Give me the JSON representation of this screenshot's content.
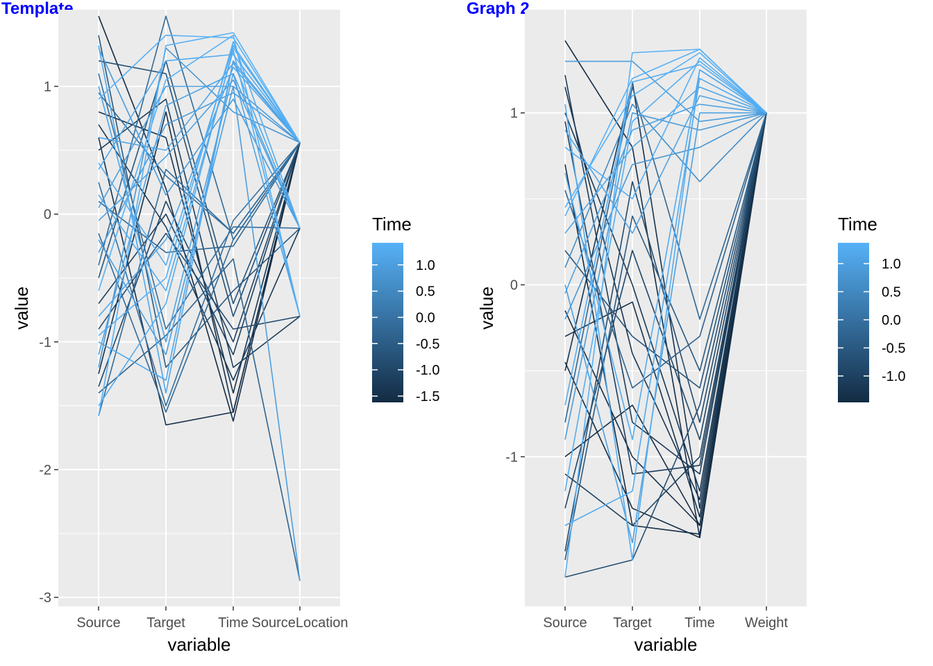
{
  "chart_data": [
    {
      "type": "line",
      "subtype": "parallel-coordinates",
      "title": "Template",
      "xlabel": "variable",
      "ylabel": "value",
      "categories": [
        "Source",
        "Target",
        "Time",
        "SourceLocation"
      ],
      "ylim": [
        -3.07,
        1.6
      ],
      "yticks": [
        -3,
        -2,
        -1,
        0,
        1
      ],
      "ytick_labels": [
        "-3",
        "-2",
        "-1",
        "0",
        "1"
      ],
      "grid": true,
      "legend": {
        "title": "Time",
        "position": "right",
        "range": [
          -1.62,
          1.42
        ],
        "ticks": [
          1.0,
          0.5,
          0.0,
          -0.5,
          -1.0,
          -1.5
        ],
        "tick_labels": [
          "1.0",
          "0.5",
          "0.0",
          "-0.5",
          "-1.0",
          "-1.5"
        ],
        "color_low": "#132b43",
        "color_high": "#56b1f7"
      },
      "series": [
        {
          "values": [
            1.55,
            0.2,
            -1.62,
            0.56
          ]
        },
        {
          "values": [
            -1.58,
            1.32,
            1.42,
            0.56
          ]
        },
        {
          "values": [
            1.32,
            -1.4,
            1.2,
            -0.11
          ]
        },
        {
          "values": [
            -0.4,
            1.55,
            -0.2,
            0.56
          ]
        },
        {
          "values": [
            0.6,
            -1.65,
            -1.55,
            0.56
          ]
        },
        {
          "values": [
            -1.1,
            0.85,
            1.1,
            -0.8
          ]
        },
        {
          "values": [
            0.95,
            0.3,
            -0.15,
            0.56
          ]
        },
        {
          "values": [
            -0.95,
            -0.5,
            1.35,
            -0.11
          ]
        },
        {
          "values": [
            0.35,
            1.2,
            1.25,
            0.56
          ]
        },
        {
          "values": [
            -1.35,
            0.1,
            -1.0,
            0.56
          ]
        },
        {
          "values": [
            1.1,
            -0.9,
            -0.1,
            -0.11
          ]
        },
        {
          "values": [
            -0.2,
            -1.1,
            1.0,
            -2.87
          ]
        },
        {
          "values": [
            0.8,
            0.6,
            -1.4,
            0.56
          ]
        },
        {
          "values": [
            -0.6,
            1.05,
            1.4,
            -0.8
          ]
        },
        {
          "values": [
            0.1,
            -0.3,
            -0.25,
            0.56
          ]
        },
        {
          "values": [
            -1.2,
            1.3,
            0.8,
            0.56
          ]
        },
        {
          "values": [
            1.4,
            -1.2,
            -0.6,
            -0.11
          ]
        },
        {
          "values": [
            -0.8,
            -0.2,
            1.15,
            0.56
          ]
        },
        {
          "values": [
            0.5,
            0.9,
            -1.2,
            -0.8
          ]
        },
        {
          "values": [
            -1.5,
            -0.7,
            1.3,
            0.56
          ]
        },
        {
          "values": [
            0.25,
            -1.5,
            -0.05,
            0.56
          ]
        },
        {
          "values": [
            -0.05,
            0.45,
            1.05,
            -0.11
          ]
        },
        {
          "values": [
            1.2,
            1.1,
            -0.8,
            0.56
          ]
        },
        {
          "values": [
            -1.0,
            -1.3,
            1.2,
            0.56
          ]
        },
        {
          "values": [
            0.7,
            -0.1,
            -1.3,
            -0.11
          ]
        },
        {
          "values": [
            -0.3,
            0.7,
            0.95,
            0.56
          ]
        },
        {
          "values": [
            -1.4,
            -0.95,
            -0.35,
            -2.87
          ]
        },
        {
          "values": [
            0.9,
            1.4,
            1.38,
            0.56
          ]
        },
        {
          "values": [
            -0.7,
            0.0,
            -1.1,
            0.56
          ]
        },
        {
          "values": [
            0.15,
            -0.6,
            1.28,
            -0.8
          ]
        },
        {
          "values": [
            -1.58,
            0.35,
            -0.15,
            0.56
          ]
        },
        {
          "values": [
            1.0,
            -1.0,
            1.1,
            -0.11
          ]
        },
        {
          "values": [
            -0.5,
            1.2,
            -0.7,
            0.56
          ]
        },
        {
          "values": [
            0.4,
            -0.4,
            1.32,
            0.56
          ]
        },
        {
          "values": [
            -1.25,
            0.8,
            -1.55,
            0.56
          ]
        },
        {
          "values": [
            1.3,
            0.15,
            0.9,
            -0.11
          ]
        },
        {
          "values": [
            -0.15,
            -1.55,
            -0.2,
            0.56
          ]
        },
        {
          "values": [
            0.6,
            0.5,
            1.18,
            0.56
          ]
        },
        {
          "values": [
            -0.9,
            -0.15,
            -0.9,
            -0.8
          ]
        },
        {
          "values": [
            0.05,
            1.0,
            1.0,
            0.56
          ]
        }
      ]
    },
    {
      "type": "line",
      "subtype": "parallel-coordinates",
      "title": "Graph 2",
      "xlabel": "variable",
      "ylabel": "value",
      "categories": [
        "Source",
        "Target",
        "Time",
        "Weight"
      ],
      "ylim": [
        -1.87,
        1.6
      ],
      "yticks": [
        -1,
        0,
        1
      ],
      "ytick_labels": [
        "-1",
        "0",
        "1"
      ],
      "grid": true,
      "legend": {
        "title": "Time",
        "position": "right",
        "range": [
          -1.47,
          1.37
        ],
        "ticks": [
          1.0,
          0.5,
          0.0,
          -0.5,
          -1.0
        ],
        "tick_labels": [
          "1.0",
          "0.5",
          "0.0",
          "-0.5",
          "-1.0"
        ],
        "color_low": "#132b43",
        "color_high": "#56b1f7"
      },
      "series": [
        {
          "values": [
            1.42,
            0.8,
            -1.47,
            1.0
          ]
        },
        {
          "values": [
            -1.7,
            1.35,
            1.37,
            1.0
          ]
        },
        {
          "values": [
            1.05,
            -1.6,
            1.25,
            1.0
          ]
        },
        {
          "values": [
            -0.5,
            1.18,
            -1.3,
            1.0
          ]
        },
        {
          "values": [
            0.7,
            -1.4,
            -1.45,
            1.0
          ]
        },
        {
          "values": [
            -1.2,
            0.95,
            1.3,
            1.0
          ]
        },
        {
          "values": [
            0.2,
            -0.3,
            -0.6,
            1.0
          ]
        },
        {
          "values": [
            -0.9,
            1.0,
            0.9,
            1.0
          ]
        },
        {
          "values": [
            1.22,
            -0.8,
            -1.1,
            1.0
          ]
        },
        {
          "values": [
            -1.4,
            -1.2,
            1.2,
            1.0
          ]
        },
        {
          "values": [
            0.45,
            1.1,
            1.35,
            1.0
          ]
        },
        {
          "values": [
            -0.15,
            -1.0,
            -1.4,
            1.0
          ]
        },
        {
          "values": [
            0.9,
            0.3,
            1.1,
            1.0
          ]
        },
        {
          "values": [
            -1.55,
            0.6,
            -0.8,
            1.0
          ]
        },
        {
          "values": [
            0.0,
            -1.5,
            1.0,
            1.0
          ]
        },
        {
          "values": [
            1.0,
            0.0,
            -1.2,
            1.0
          ]
        },
        {
          "values": [
            -0.7,
            1.18,
            1.28,
            1.0
          ]
        },
        {
          "values": [
            0.55,
            -0.6,
            -0.3,
            1.0
          ]
        },
        {
          "values": [
            -1.1,
            -1.4,
            -1.0,
            1.0
          ]
        },
        {
          "values": [
            0.3,
            0.8,
            1.15,
            1.0
          ]
        },
        {
          "values": [
            -0.3,
            -0.1,
            -1.35,
            1.0
          ]
        },
        {
          "values": [
            1.3,
            1.3,
            0.95,
            1.0
          ]
        },
        {
          "values": [
            -1.7,
            -1.6,
            -0.7,
            1.0
          ]
        },
        {
          "values": [
            0.8,
            0.5,
            1.32,
            1.0
          ]
        },
        {
          "values": [
            -0.45,
            -1.3,
            -1.47,
            1.0
          ]
        },
        {
          "values": [
            0.1,
            1.05,
            0.6,
            1.0
          ]
        },
        {
          "values": [
            -1.3,
            0.2,
            -0.9,
            1.0
          ]
        },
        {
          "values": [
            0.65,
            -0.9,
            1.25,
            1.0
          ]
        },
        {
          "values": [
            -0.8,
            1.15,
            -0.2,
            1.0
          ]
        },
        {
          "values": [
            1.15,
            -0.4,
            -1.25,
            1.0
          ]
        },
        {
          "values": [
            -0.05,
            0.9,
            1.05,
            1.0
          ]
        },
        {
          "values": [
            -1.0,
            -0.7,
            -1.4,
            1.0
          ]
        },
        {
          "values": [
            0.4,
            1.2,
            1.37,
            1.0
          ]
        },
        {
          "values": [
            -1.6,
            0.4,
            -0.5,
            1.0
          ]
        },
        {
          "values": [
            0.95,
            -1.1,
            -1.05,
            1.0
          ]
        },
        {
          "values": [
            -0.2,
            0.7,
            0.8,
            1.0
          ]
        }
      ]
    }
  ]
}
